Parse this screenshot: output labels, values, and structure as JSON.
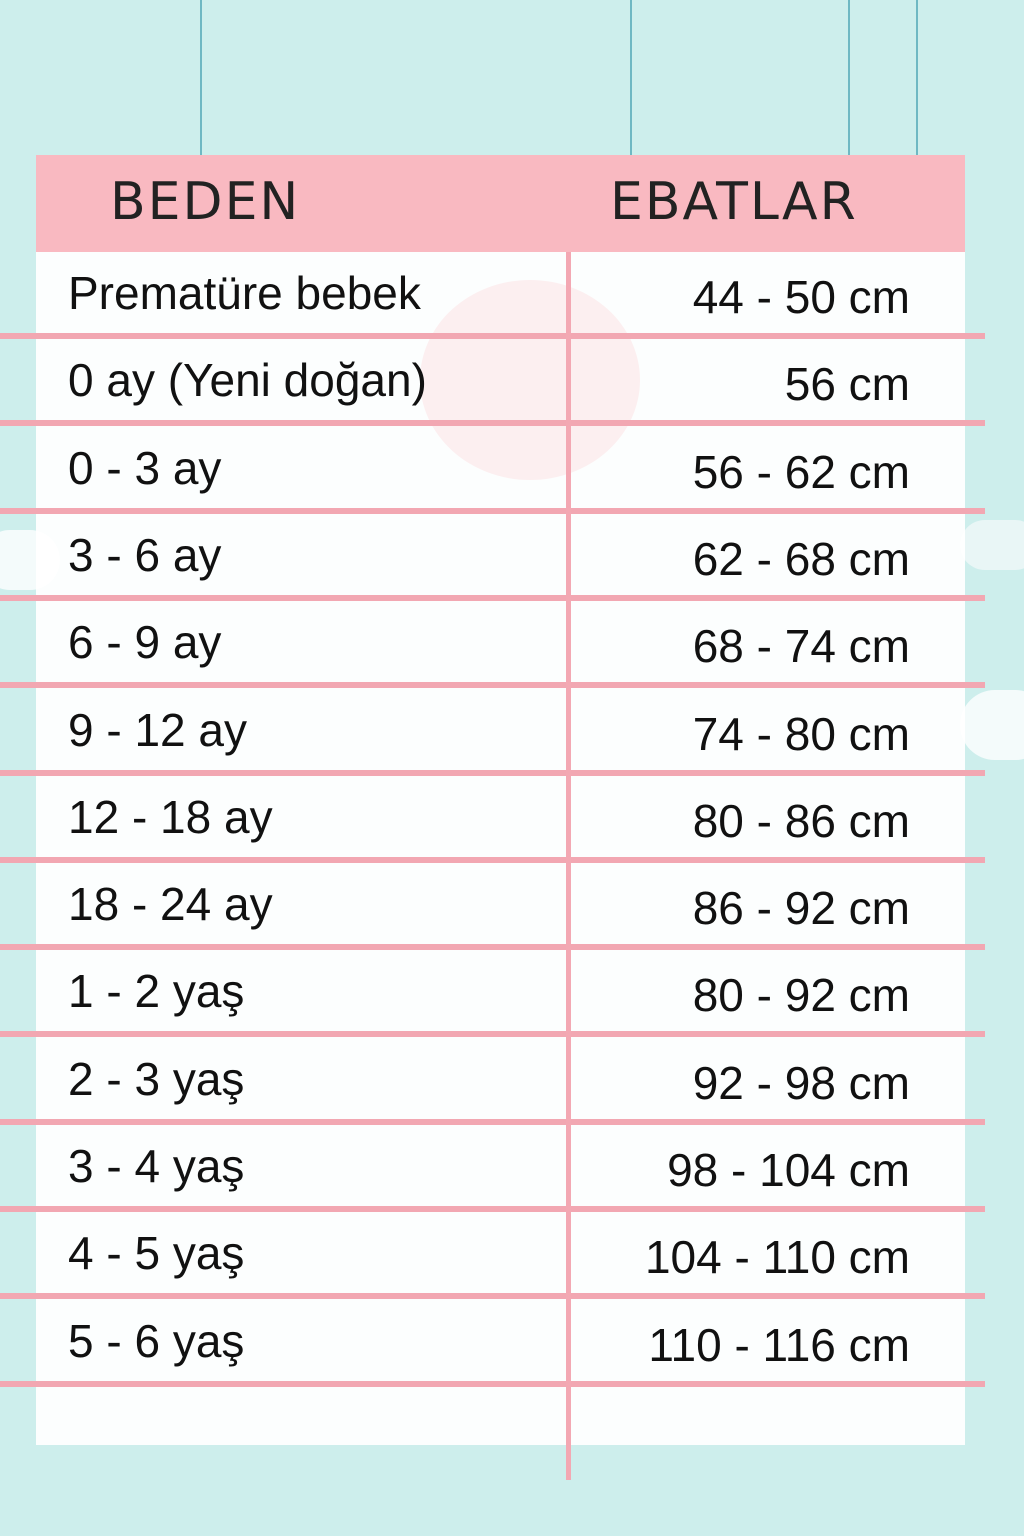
{
  "header": {
    "size_label": "BEDEN",
    "dimension_label": "EBATLAR"
  },
  "colors": {
    "background": "#cdeeec",
    "header": "#f9b9c1",
    "lines": "#f2a7b2"
  },
  "rows": [
    {
      "size": "Prematüre bebek",
      "dimension": "44 - 50 cm"
    },
    {
      "size": "0 ay (Yeni doğan)",
      "dimension": "56 cm"
    },
    {
      "size": "0 - 3 ay",
      "dimension": "56 - 62 cm"
    },
    {
      "size": "3 - 6 ay",
      "dimension": "62 - 68 cm"
    },
    {
      "size": "6 - 9 ay",
      "dimension": "68 - 74 cm"
    },
    {
      "size": "9 - 12 ay",
      "dimension": "74 - 80 cm"
    },
    {
      "size": "12 - 18 ay",
      "dimension": "80 - 86 cm"
    },
    {
      "size": "18 - 24 ay",
      "dimension": "86 - 92 cm"
    },
    {
      "size": "1 - 2 yaş",
      "dimension": "80 - 92 cm"
    },
    {
      "size": "2 - 3 yaş",
      "dimension": "92 - 98 cm"
    },
    {
      "size": "3 - 4 yaş",
      "dimension": "98 - 104 cm"
    },
    {
      "size": "4 - 5 yaş",
      "dimension": "104 - 110 cm"
    },
    {
      "size": "5 - 6 yaş",
      "dimension": "110 - 116 cm"
    }
  ]
}
